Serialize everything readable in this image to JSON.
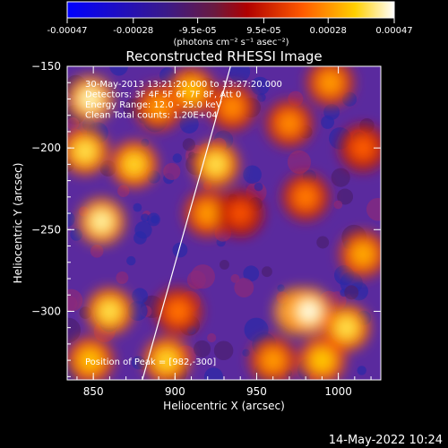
{
  "colorbar": {
    "ticks": [
      "-0.00047",
      "-0.00028",
      "-9.5e-05",
      "9.5e-05",
      "0.00028",
      "0.00047"
    ],
    "tick_values": [
      -0.00047,
      -0.00028,
      -9.5e-05,
      9.5e-05,
      0.00028,
      0.00047
    ],
    "range": [
      -0.00047,
      0.00047
    ],
    "units": "(photons cm⁻² s⁻¹ asec⁻²)",
    "colors": [
      "#0000ff",
      "#3a1a8a",
      "#7b1d1d",
      "#ff0000",
      "#ffa500",
      "#ffff00",
      "#ffffff"
    ]
  },
  "footer": {
    "timestamp": "14-May-2022 10:24"
  },
  "chart_data": {
    "type": "heatmap",
    "title": "Reconstructed RHESSI Image",
    "xlabel": "Heliocentric X (arcsec)",
    "ylabel": "Heliocentric Y (arcsec)",
    "xlim": [
      834,
      1026
    ],
    "ylim": [
      -342,
      -150
    ],
    "x_ticks": [
      850,
      900,
      950,
      1000
    ],
    "y_ticks": [
      -150,
      -200,
      -250,
      -300
    ],
    "annotations": [
      "30-May-2013 13:21:20.000 to 13:27:20.000",
      "Detectors: 3F 4F 5F 6F 7F 8F, Att 0",
      "Energy Range: 12.0 - 25.0 keV",
      "Clean     Total counts: 1.20E+04"
    ],
    "peak_label": "Position of Peak = [982,-300]",
    "peak": [
      982,
      -300
    ],
    "limb_line": [
      [
        880,
        -342
      ],
      [
        934,
        -150
      ]
    ],
    "sources": [
      {
        "x": 848,
        "y": -170,
        "v": 0.00045
      },
      {
        "x": 845,
        "y": -202,
        "v": 0.0004
      },
      {
        "x": 855,
        "y": -245,
        "v": 0.00044
      },
      {
        "x": 860,
        "y": -300,
        "v": 0.0004
      },
      {
        "x": 848,
        "y": -330,
        "v": 0.00035
      },
      {
        "x": 890,
        "y": -175,
        "v": 0.0003
      },
      {
        "x": 875,
        "y": -210,
        "v": 0.00038
      },
      {
        "x": 910,
        "y": -165,
        "v": 0.00035
      },
      {
        "x": 925,
        "y": -210,
        "v": 0.0004
      },
      {
        "x": 920,
        "y": -240,
        "v": 0.0003
      },
      {
        "x": 895,
        "y": -330,
        "v": 0.00038
      },
      {
        "x": 902,
        "y": -300,
        "v": 0.00025
      },
      {
        "x": 970,
        "y": -185,
        "v": 0.00028
      },
      {
        "x": 995,
        "y": -160,
        "v": 0.0003
      },
      {
        "x": 980,
        "y": -230,
        "v": 0.00026
      },
      {
        "x": 975,
        "y": -300,
        "v": 0.00047
      },
      {
        "x": 982,
        "y": -300,
        "v": 0.00047
      },
      {
        "x": 1005,
        "y": -310,
        "v": 0.0004
      },
      {
        "x": 1015,
        "y": -265,
        "v": 0.00032
      },
      {
        "x": 960,
        "y": -330,
        "v": 0.0003
      },
      {
        "x": 990,
        "y": -330,
        "v": 0.00036
      },
      {
        "x": 940,
        "y": -240,
        "v": 0.0002
      },
      {
        "x": 1015,
        "y": -200,
        "v": 0.00022
      },
      {
        "x": 935,
        "y": -175,
        "v": 0.00028
      }
    ],
    "grid": false,
    "legend": "none"
  }
}
